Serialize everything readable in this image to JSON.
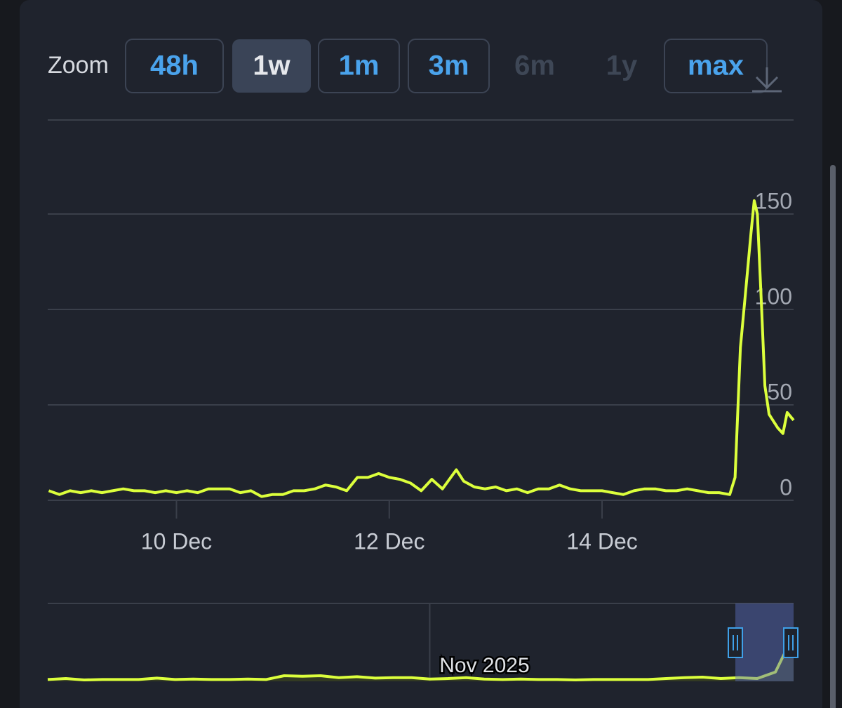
{
  "zoom": {
    "label": "Zoom",
    "buttons": [
      {
        "label": "48h",
        "state": "enabled"
      },
      {
        "label": "1w",
        "state": "active"
      },
      {
        "label": "1m",
        "state": "enabled"
      },
      {
        "label": "3m",
        "state": "enabled"
      },
      {
        "label": "6m",
        "state": "disabled"
      },
      {
        "label": "1y",
        "state": "disabled"
      },
      {
        "label": "max",
        "state": "enabled"
      }
    ]
  },
  "chart_data": [
    {
      "type": "line",
      "color": "#dcff3c",
      "x": [
        8.8,
        8.9,
        9.0,
        9.1,
        9.2,
        9.3,
        9.4,
        9.5,
        9.6,
        9.7,
        9.8,
        9.9,
        10.0,
        10.1,
        10.2,
        10.3,
        10.4,
        10.5,
        10.6,
        10.7,
        10.8,
        10.9,
        11.0,
        11.1,
        11.2,
        11.3,
        11.4,
        11.5,
        11.6,
        11.7,
        11.8,
        11.9,
        12.0,
        12.1,
        12.2,
        12.3,
        12.4,
        12.5,
        12.63,
        12.7,
        12.8,
        12.9,
        13.0,
        13.1,
        13.2,
        13.3,
        13.4,
        13.5,
        13.6,
        13.7,
        13.8,
        13.9,
        14.0,
        14.1,
        14.2,
        14.3,
        14.4,
        14.5,
        14.6,
        14.7,
        14.8,
        14.9,
        15.0,
        15.1,
        15.2,
        15.25,
        15.3,
        15.35,
        15.4,
        15.43,
        15.46,
        15.5,
        15.53,
        15.57,
        15.65,
        15.7,
        15.74,
        15.8
      ],
      "values": [
        5,
        3,
        5,
        4,
        5,
        4,
        5,
        6,
        5,
        5,
        4,
        5,
        4,
        5,
        4,
        6,
        6,
        6,
        4,
        5,
        2,
        3,
        3,
        5,
        5,
        6,
        8,
        7,
        5,
        12,
        12,
        14,
        12,
        11,
        9,
        5,
        11,
        6,
        16,
        10,
        7,
        6,
        7,
        5,
        6,
        4,
        6,
        6,
        8,
        6,
        5,
        5,
        5,
        4,
        3,
        5,
        6,
        6,
        5,
        5,
        6,
        5,
        4,
        4,
        3,
        12,
        80,
        110,
        140,
        157,
        150,
        100,
        60,
        45,
        38,
        35,
        46,
        42
      ],
      "xlim": [
        8.79,
        15.8
      ],
      "xticks": [
        {
          "value": 10,
          "label": "10 Dec"
        },
        {
          "value": 12,
          "label": "12 Dec"
        },
        {
          "value": 14,
          "label": "14 Dec"
        }
      ],
      "ylim": [
        0,
        200
      ],
      "yticks": [
        0,
        50,
        100,
        150
      ],
      "grid": true
    },
    {
      "type": "area",
      "color": "#dcff3c",
      "categories": [
        null,
        null,
        null,
        null,
        null,
        null,
        null,
        null,
        null,
        null,
        null,
        null,
        null,
        null,
        null,
        null,
        null,
        null,
        null,
        null,
        null,
        "Nov 2025",
        null,
        null,
        null,
        null,
        null,
        null,
        null,
        null,
        null,
        null,
        null,
        null,
        null,
        null,
        null,
        null,
        null,
        null,
        null,
        null
      ],
      "values": [
        4,
        6,
        3,
        4,
        4,
        4,
        7,
        4,
        5,
        4,
        4,
        5,
        4,
        12,
        11,
        12,
        8,
        10,
        7,
        8,
        8,
        5,
        6,
        8,
        5,
        4,
        5,
        4,
        4,
        3,
        4,
        4,
        4,
        4,
        6,
        8,
        9,
        6,
        8,
        6,
        20,
        100
      ],
      "ylim": [
        0,
        160
      ]
    }
  ]
}
